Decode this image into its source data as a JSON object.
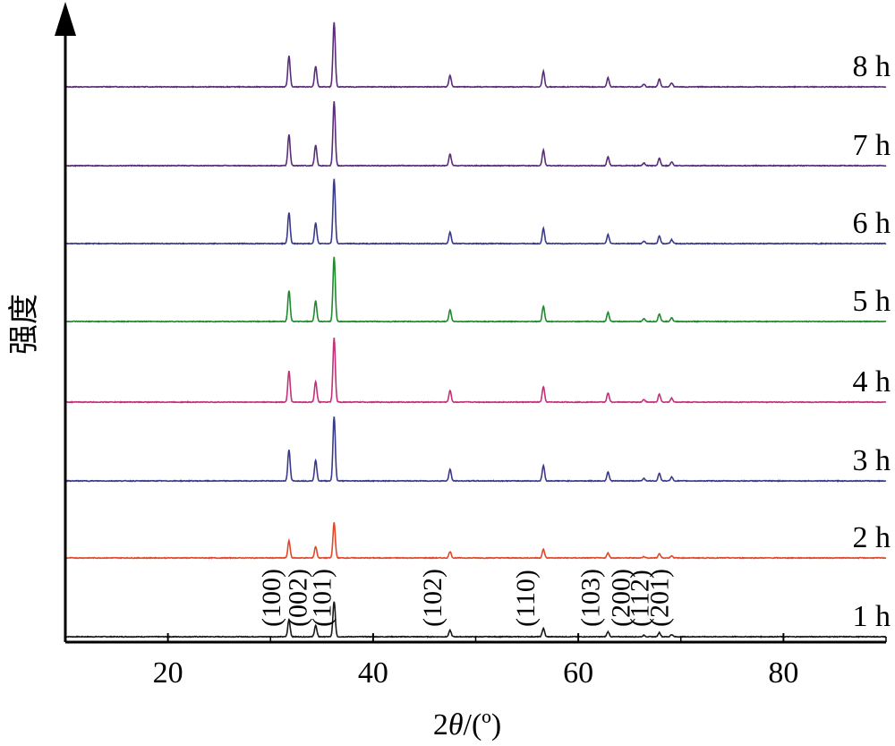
{
  "chart_data": {
    "type": "line",
    "xlabel_prefix": "2",
    "xlabel_italic": "θ",
    "xlabel_suffix": "/(º)",
    "ylabel": "强度",
    "xlim": [
      10,
      90
    ],
    "xticks": [
      20,
      40,
      60,
      80
    ],
    "y_tick_labels": false,
    "grid": false,
    "series": [
      {
        "name": "1 h",
        "color": "#1a1a1a",
        "scale": 0.55
      },
      {
        "name": "2 h",
        "color": "#e0482a",
        "scale": 0.55
      },
      {
        "name": "3 h",
        "color": "#3a3a8c",
        "scale": 1.0
      },
      {
        "name": "4 h",
        "color": "#c2317a",
        "scale": 1.0
      },
      {
        "name": "5 h",
        "color": "#1f8a2e",
        "scale": 1.0
      },
      {
        "name": "6 h",
        "color": "#3a3a8c",
        "scale": 1.0
      },
      {
        "name": "7 h",
        "color": "#5a2d7a",
        "scale": 1.0
      },
      {
        "name": "8 h",
        "color": "#5a2d7a",
        "scale": 1.0
      }
    ],
    "peaks": [
      {
        "x": 31.8,
        "rel": 0.48,
        "label": "(100)"
      },
      {
        "x": 34.4,
        "rel": 0.32,
        "label": "(002)"
      },
      {
        "x": 36.2,
        "rel": 1.0,
        "label": "(101)"
      },
      {
        "x": 47.5,
        "rel": 0.18,
        "label": "(102)"
      },
      {
        "x": 56.6,
        "rel": 0.24,
        "label": "(110)"
      },
      {
        "x": 62.9,
        "rel": 0.14,
        "label": "(103)"
      },
      {
        "x": 66.4,
        "rel": 0.04,
        "label": "(200)"
      },
      {
        "x": 67.9,
        "rel": 0.12,
        "label": "(112)"
      },
      {
        "x": 69.1,
        "rel": 0.06,
        "label": "(201)"
      }
    ]
  }
}
